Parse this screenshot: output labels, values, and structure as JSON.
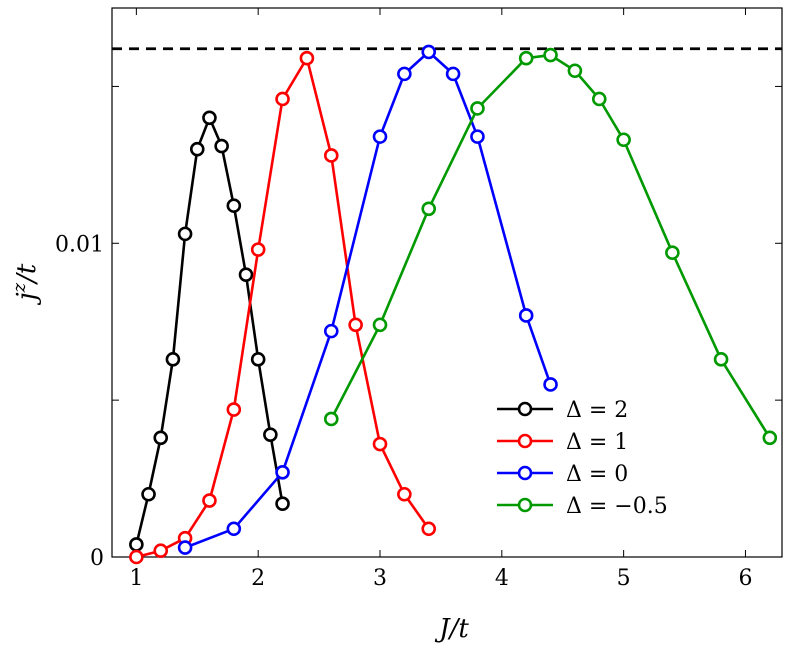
{
  "chart_data": {
    "type": "line",
    "title": "",
    "xlabel": "J/t",
    "ylabel": "j^z/t",
    "xlim": [
      0.8,
      6.3
    ],
    "ylim": [
      0,
      0.0175
    ],
    "xticks": [
      1,
      2,
      3,
      4,
      5,
      6
    ],
    "xtick_labels": [
      "1",
      "2",
      "3",
      "4",
      "5",
      "6"
    ],
    "yticks": [
      0,
      0.005,
      0.01,
      0.015
    ],
    "ytick_labels": [
      "0",
      "",
      "0.01",
      ""
    ],
    "grid": false,
    "legend_position": "bottom-right",
    "reference_line": {
      "style": "dashed",
      "color": "#000000",
      "y": 0.0162
    },
    "series": [
      {
        "name": "Δ = 2",
        "color": "#000000",
        "points": [
          [
            1.0,
            0.0004
          ],
          [
            1.1,
            0.002
          ],
          [
            1.2,
            0.0038
          ],
          [
            1.3,
            0.0063
          ],
          [
            1.4,
            0.0103
          ],
          [
            1.5,
            0.013
          ],
          [
            1.6,
            0.014
          ],
          [
            1.7,
            0.0131
          ],
          [
            1.8,
            0.0112
          ],
          [
            1.9,
            0.009
          ],
          [
            2.0,
            0.0063
          ],
          [
            2.1,
            0.0039
          ],
          [
            2.2,
            0.0017
          ]
        ]
      },
      {
        "name": "Δ = 1",
        "color": "#ff0000",
        "points": [
          [
            1.0,
            0.0
          ],
          [
            1.2,
            0.0002
          ],
          [
            1.4,
            0.0006
          ],
          [
            1.6,
            0.0018
          ],
          [
            1.8,
            0.0047
          ],
          [
            2.0,
            0.0098
          ],
          [
            2.2,
            0.0146
          ],
          [
            2.4,
            0.0159
          ],
          [
            2.6,
            0.0128
          ],
          [
            2.8,
            0.0074
          ],
          [
            3.0,
            0.0036
          ],
          [
            3.2,
            0.002
          ],
          [
            3.4,
            0.0009
          ]
        ]
      },
      {
        "name": "Δ = 0",
        "color": "#0000ff",
        "points": [
          [
            1.4,
            0.0003
          ],
          [
            1.8,
            0.0009
          ],
          [
            2.2,
            0.0027
          ],
          [
            2.6,
            0.0072
          ],
          [
            3.0,
            0.0134
          ],
          [
            3.2,
            0.0154
          ],
          [
            3.4,
            0.0161
          ],
          [
            3.6,
            0.0154
          ],
          [
            3.8,
            0.0134
          ],
          [
            4.2,
            0.0077
          ],
          [
            4.4,
            0.0055
          ]
        ]
      },
      {
        "name": "Δ = −0.5",
        "color": "#009900",
        "points": [
          [
            2.6,
            0.0044
          ],
          [
            3.0,
            0.0074
          ],
          [
            3.4,
            0.0111
          ],
          [
            3.8,
            0.0143
          ],
          [
            4.2,
            0.0159
          ],
          [
            4.4,
            0.016
          ],
          [
            4.6,
            0.0155
          ],
          [
            4.8,
            0.0146
          ],
          [
            5.0,
            0.0133
          ],
          [
            5.4,
            0.0097
          ],
          [
            5.8,
            0.0063
          ],
          [
            6.2,
            0.0038
          ]
        ]
      }
    ]
  }
}
